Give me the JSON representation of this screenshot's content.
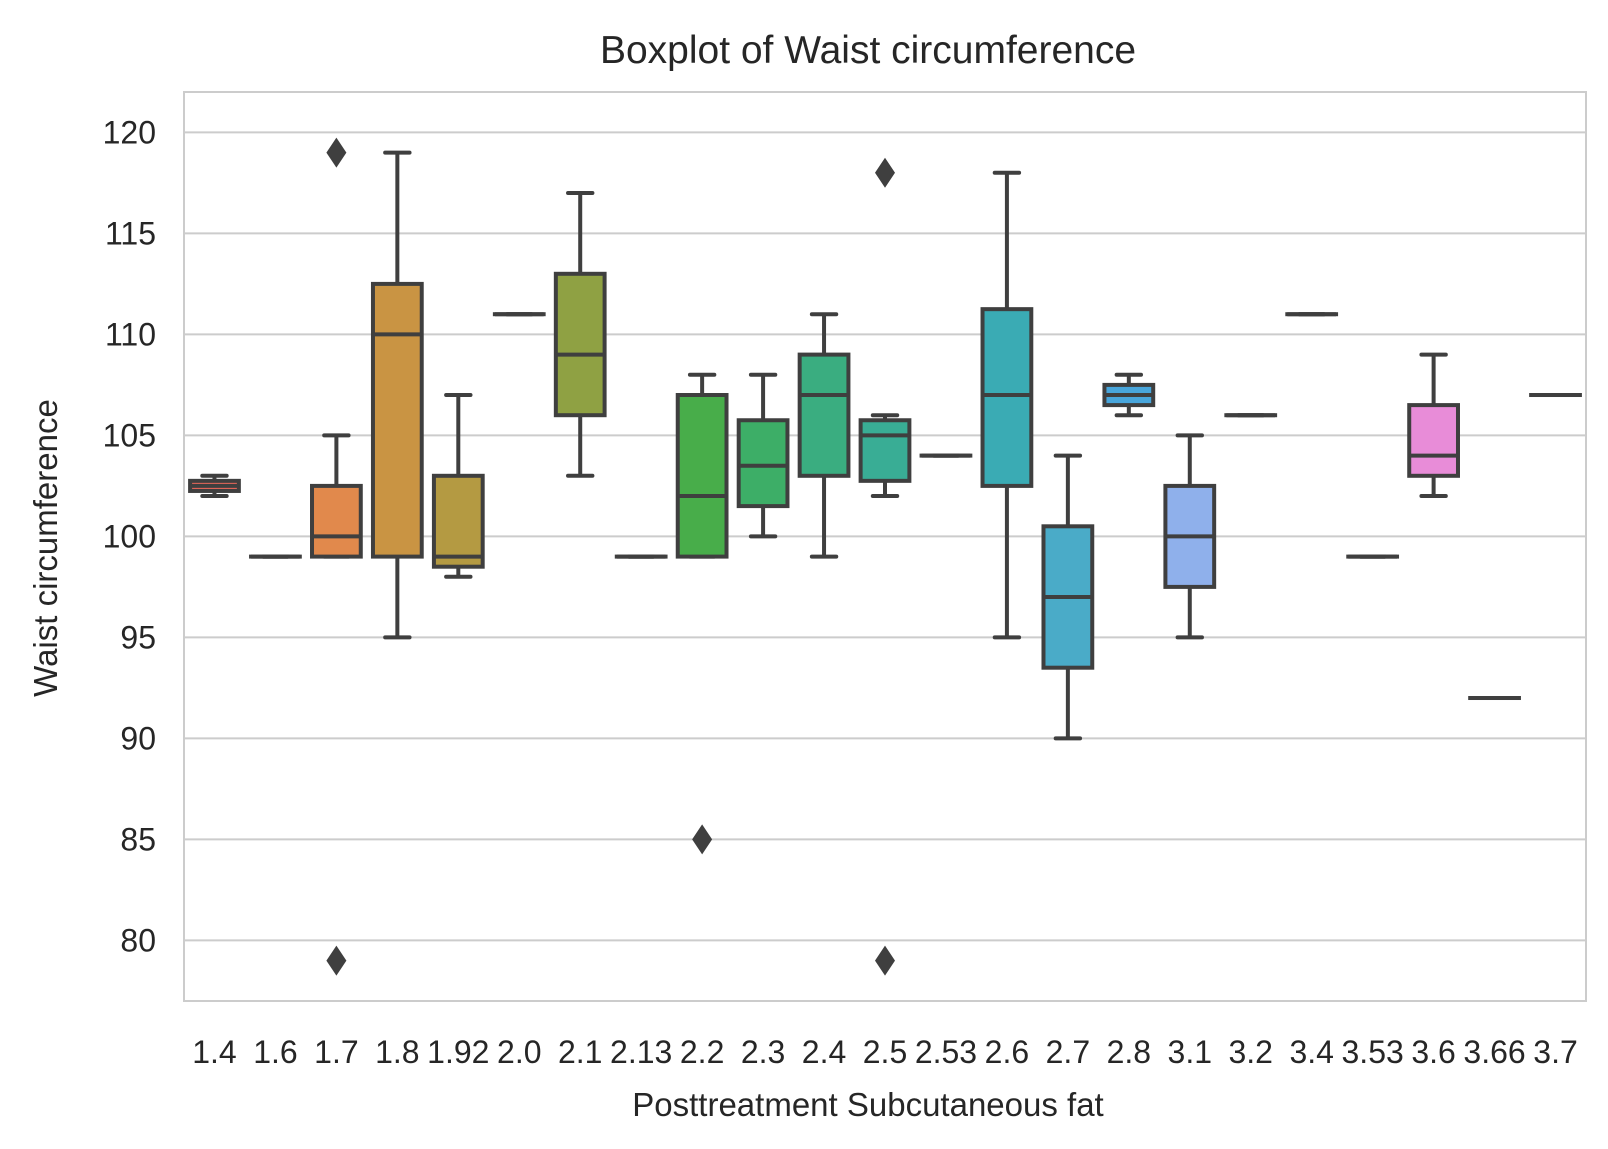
{
  "chart_data": {
    "type": "boxplot",
    "title": "Boxplot of Waist circumference",
    "xlabel": "Posttreatment Subcutaneous fat",
    "ylabel": "Waist circumference",
    "ylim": [
      77,
      122
    ],
    "yticks": [
      80,
      85,
      90,
      95,
      100,
      105,
      110,
      115,
      120
    ],
    "grid": true,
    "categories": [
      "1.4",
      "1.6",
      "1.7",
      "1.8",
      "1.92",
      "2.0",
      "2.1",
      "2.13",
      "2.2",
      "2.3",
      "2.4",
      "2.5",
      "2.53",
      "2.6",
      "2.7",
      "2.8",
      "3.1",
      "3.2",
      "3.4",
      "3.53",
      "3.6",
      "3.66",
      "3.7"
    ],
    "boxes": [
      {
        "category": "1.4",
        "whisker_low": 102,
        "q1": 102.25,
        "median": 102.5,
        "q3": 102.75,
        "whisker_high": 103,
        "fliers": [],
        "color": "#e7675a"
      },
      {
        "category": "1.6",
        "whisker_low": 99,
        "q1": 99,
        "median": 99,
        "q3": 99,
        "whisker_high": 99,
        "fliers": [],
        "color": "#e9744f"
      },
      {
        "category": "1.7",
        "whisker_low": 99,
        "q1": 99,
        "median": 100,
        "q3": 102.5,
        "whisker_high": 105,
        "fliers": [
          119,
          79
        ],
        "color": "#e1894c"
      },
      {
        "category": "1.8",
        "whisker_low": 95,
        "q1": 99,
        "median": 110,
        "q3": 112.5,
        "whisker_high": 119,
        "fliers": [],
        "color": "#c99443"
      },
      {
        "category": "1.92",
        "whisker_low": 98,
        "q1": 98.5,
        "median": 99,
        "q3": 103,
        "whisker_high": 107,
        "fliers": [],
        "color": "#b49a42"
      },
      {
        "category": "2.0",
        "whisker_low": 111,
        "q1": 111,
        "median": 111,
        "q3": 111,
        "whisker_high": 111,
        "fliers": [],
        "color": "#a19f3f"
      },
      {
        "category": "2.1",
        "whisker_low": 103,
        "q1": 106,
        "median": 109,
        "q3": 113,
        "whisker_high": 117,
        "fliers": [],
        "color": "#8fa143"
      },
      {
        "category": "2.13",
        "whisker_low": 99,
        "q1": 99,
        "median": 99,
        "q3": 99,
        "whisker_high": 99,
        "fliers": [],
        "color": "#6fab44"
      },
      {
        "category": "2.2",
        "whisker_low": 99,
        "q1": 99,
        "median": 102,
        "q3": 107,
        "whisker_high": 108,
        "fliers": [
          85
        ],
        "color": "#48ad4a"
      },
      {
        "category": "2.3",
        "whisker_low": 100,
        "q1": 101.5,
        "median": 103.5,
        "q3": 105.75,
        "whisker_high": 108,
        "fliers": [],
        "color": "#3dae67"
      },
      {
        "category": "2.4",
        "whisker_low": 99,
        "q1": 103,
        "median": 107,
        "q3": 109,
        "whisker_high": 111,
        "fliers": [],
        "color": "#3aad80"
      },
      {
        "category": "2.5",
        "whisker_low": 102,
        "q1": 102.75,
        "median": 105,
        "q3": 105.75,
        "whisker_high": 106,
        "fliers": [
          118,
          79
        ],
        "color": "#39ad95"
      },
      {
        "category": "2.53",
        "whisker_low": 104,
        "q1": 104,
        "median": 104,
        "q3": 104,
        "whisker_high": 104,
        "fliers": [],
        "color": "#3aaca5"
      },
      {
        "category": "2.6",
        "whisker_low": 95,
        "q1": 102.5,
        "median": 107,
        "q3": 111.25,
        "whisker_high": 118,
        "fliers": [],
        "color": "#3aabb4"
      },
      {
        "category": "2.7",
        "whisker_low": 90,
        "q1": 93.5,
        "median": 97,
        "q3": 100.5,
        "whisker_high": 104,
        "fliers": [],
        "color": "#4aabc8"
      },
      {
        "category": "2.8",
        "whisker_low": 106,
        "q1": 106.5,
        "median": 107,
        "q3": 107.5,
        "whisker_high": 108,
        "fliers": [],
        "color": "#48a6dc"
      },
      {
        "category": "3.1",
        "whisker_low": 95,
        "q1": 97.5,
        "median": 100,
        "q3": 102.5,
        "whisker_high": 105,
        "fliers": [],
        "color": "#8fb0eb"
      },
      {
        "category": "3.2",
        "whisker_low": 106,
        "q1": 106,
        "median": 106,
        "q3": 106,
        "whisker_high": 106,
        "fliers": [],
        "color": "#a79ff0"
      },
      {
        "category": "3.4",
        "whisker_low": 111,
        "q1": 111,
        "median": 111,
        "q3": 111,
        "whisker_high": 111,
        "fliers": [],
        "color": "#c393ee"
      },
      {
        "category": "3.53",
        "whisker_low": 99,
        "q1": 99,
        "median": 99,
        "q3": 99,
        "whisker_high": 99,
        "fliers": [],
        "color": "#dc89e6"
      },
      {
        "category": "3.6",
        "whisker_low": 102,
        "q1": 103,
        "median": 104,
        "q3": 106.5,
        "whisker_high": 109,
        "fliers": [],
        "color": "#e88cd8"
      },
      {
        "category": "3.66",
        "whisker_low": 92,
        "q1": 92,
        "median": 92,
        "q3": 92,
        "whisker_high": 92,
        "fliers": [],
        "color": "#ea8ac3"
      },
      {
        "category": "3.7",
        "whisker_low": 107,
        "q1": 107,
        "median": 107,
        "q3": 107,
        "whisker_high": 107,
        "fliers": [],
        "color": "#ec8aae"
      }
    ]
  }
}
